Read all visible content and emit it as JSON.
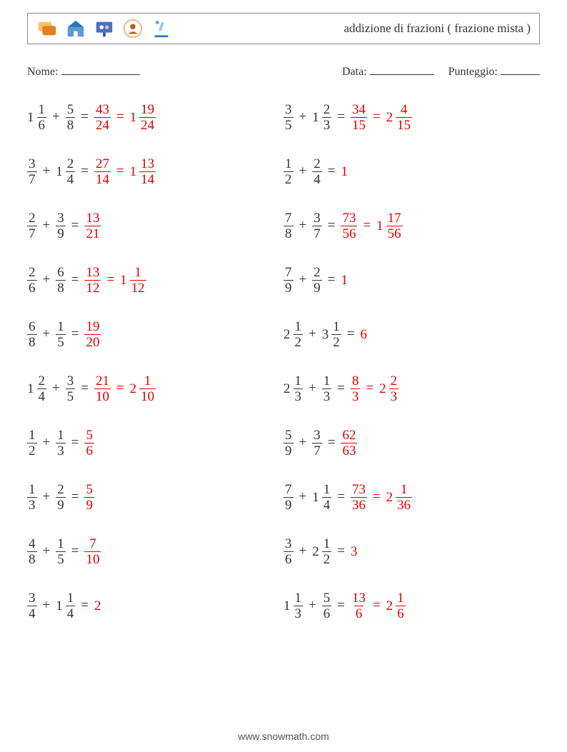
{
  "header": {
    "title": "addizione di frazioni ( frazione mista )",
    "icons": [
      {
        "name": "chat-icon",
        "bg": "#f7c65d",
        "fg": "#e67e22"
      },
      {
        "name": "school-icon",
        "bg": "#5b9bd5",
        "fg": "#2e75b6"
      },
      {
        "name": "presentation-icon",
        "bg": "#4472c4",
        "fg": "#2f5597"
      },
      {
        "name": "target-user-icon",
        "bg": "#f4b183",
        "fg": "#c55a11"
      },
      {
        "name": "microscope-icon",
        "bg": "#9dc3e6",
        "fg": "#2e75b6"
      }
    ]
  },
  "labels": {
    "name": "Nome:",
    "date": "Data:",
    "score": "Punteggio:"
  },
  "colors": {
    "text": "#333333",
    "answer": "#dd0000",
    "border": "#888888",
    "background": "#ffffff"
  },
  "typography": {
    "title_fontsize": 17,
    "label_fontsize": 16,
    "problem_fontsize": 19,
    "footer_fontsize": 14
  },
  "footer": "www.snowmath.com",
  "problems": {
    "left": [
      {
        "a": {
          "w": "1",
          "n": "1",
          "d": "6"
        },
        "b": {
          "n": "5",
          "d": "8"
        },
        "ans1": {
          "n": "43",
          "d": "24"
        },
        "ans2": {
          "w": "1",
          "n": "19",
          "d": "24"
        }
      },
      {
        "a": {
          "n": "3",
          "d": "7"
        },
        "b": {
          "w": "1",
          "n": "2",
          "d": "4"
        },
        "ans1": {
          "n": "27",
          "d": "14"
        },
        "ans2": {
          "w": "1",
          "n": "13",
          "d": "14"
        }
      },
      {
        "a": {
          "n": "2",
          "d": "7"
        },
        "b": {
          "n": "3",
          "d": "9"
        },
        "ans1": {
          "n": "13",
          "d": "21"
        }
      },
      {
        "a": {
          "n": "2",
          "d": "6"
        },
        "b": {
          "n": "6",
          "d": "8"
        },
        "ans1": {
          "n": "13",
          "d": "12"
        },
        "ans2": {
          "w": "1",
          "n": "1",
          "d": "12"
        }
      },
      {
        "a": {
          "n": "6",
          "d": "8"
        },
        "b": {
          "n": "1",
          "d": "5"
        },
        "ans1": {
          "n": "19",
          "d": "20"
        }
      },
      {
        "a": {
          "w": "1",
          "n": "2",
          "d": "4"
        },
        "b": {
          "n": "3",
          "d": "5"
        },
        "ans1": {
          "n": "21",
          "d": "10"
        },
        "ans2": {
          "w": "2",
          "n": "1",
          "d": "10"
        }
      },
      {
        "a": {
          "n": "1",
          "d": "2"
        },
        "b": {
          "n": "1",
          "d": "3"
        },
        "ans1": {
          "n": "5",
          "d": "6"
        }
      },
      {
        "a": {
          "n": "1",
          "d": "3"
        },
        "b": {
          "n": "2",
          "d": "9"
        },
        "ans1": {
          "n": "5",
          "d": "9"
        }
      },
      {
        "a": {
          "n": "4",
          "d": "8"
        },
        "b": {
          "n": "1",
          "d": "5"
        },
        "ans1": {
          "n": "7",
          "d": "10"
        }
      },
      {
        "a": {
          "n": "3",
          "d": "4"
        },
        "b": {
          "w": "1",
          "n": "1",
          "d": "4"
        },
        "ans_int": "2"
      }
    ],
    "right": [
      {
        "a": {
          "n": "3",
          "d": "5"
        },
        "b": {
          "w": "1",
          "n": "2",
          "d": "3"
        },
        "ans1": {
          "n": "34",
          "d": "15"
        },
        "ans2": {
          "w": "2",
          "n": "4",
          "d": "15"
        }
      },
      {
        "a": {
          "n": "1",
          "d": "2"
        },
        "b": {
          "n": "2",
          "d": "4"
        },
        "ans_int": "1"
      },
      {
        "a": {
          "n": "7",
          "d": "8"
        },
        "b": {
          "n": "3",
          "d": "7"
        },
        "ans1": {
          "n": "73",
          "d": "56"
        },
        "ans2": {
          "w": "1",
          "n": "17",
          "d": "56"
        }
      },
      {
        "a": {
          "n": "7",
          "d": "9"
        },
        "b": {
          "n": "2",
          "d": "9"
        },
        "ans_int": "1"
      },
      {
        "a": {
          "w": "2",
          "n": "1",
          "d": "2"
        },
        "b": {
          "w": "3",
          "n": "1",
          "d": "2"
        },
        "ans_int": "6"
      },
      {
        "a": {
          "w": "2",
          "n": "1",
          "d": "3"
        },
        "b": {
          "n": "1",
          "d": "3"
        },
        "ans1": {
          "n": "8",
          "d": "3"
        },
        "ans2": {
          "w": "2",
          "n": "2",
          "d": "3"
        }
      },
      {
        "a": {
          "n": "5",
          "d": "9"
        },
        "b": {
          "n": "3",
          "d": "7"
        },
        "ans1": {
          "n": "62",
          "d": "63"
        }
      },
      {
        "a": {
          "n": "7",
          "d": "9"
        },
        "b": {
          "w": "1",
          "n": "1",
          "d": "4"
        },
        "ans1": {
          "n": "73",
          "d": "36"
        },
        "ans2": {
          "w": "2",
          "n": "1",
          "d": "36"
        }
      },
      {
        "a": {
          "n": "3",
          "d": "6"
        },
        "b": {
          "w": "2",
          "n": "1",
          "d": "2"
        },
        "ans_int": "3"
      },
      {
        "a": {
          "w": "1",
          "n": "1",
          "d": "3"
        },
        "b": {
          "n": "5",
          "d": "6"
        },
        "ans1": {
          "n": "13",
          "d": "6"
        },
        "ans2": {
          "w": "2",
          "n": "1",
          "d": "6"
        }
      }
    ]
  }
}
